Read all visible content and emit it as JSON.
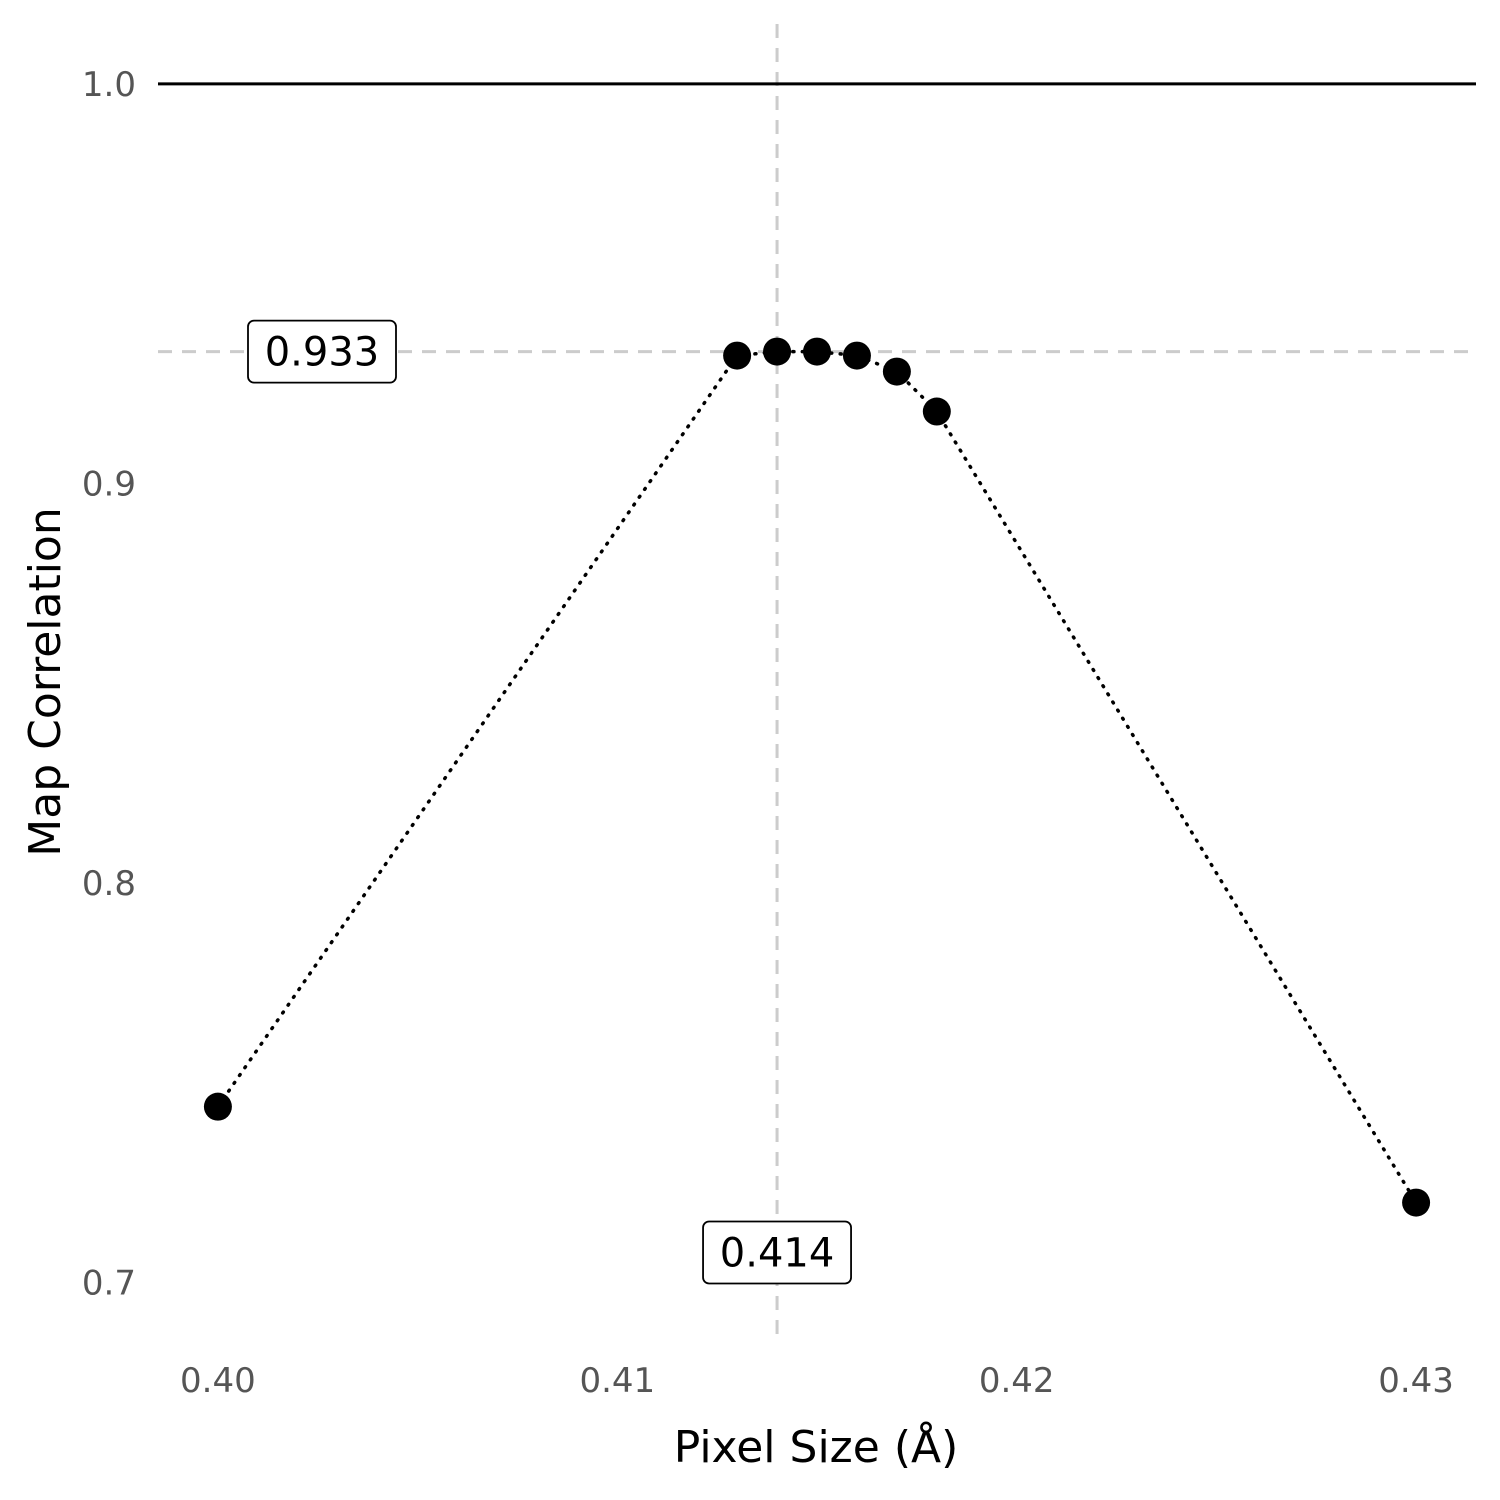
{
  "chart_data": {
    "type": "scatter",
    "title": "",
    "xlabel": "Pixel Size (Å)",
    "ylabel": "Map Correlation",
    "xlim": [
      0.3985,
      0.4315
    ],
    "ylim": [
      0.6851,
      1.015
    ],
    "x_ticks": [
      0.4,
      0.41,
      0.42,
      0.43
    ],
    "x_tick_labels": [
      "0.40",
      "0.41",
      "0.42",
      "0.43"
    ],
    "y_ticks": [
      0.7,
      0.8,
      0.9,
      1.0
    ],
    "y_tick_labels": [
      "0.7",
      "0.8",
      "0.9",
      "1.0"
    ],
    "grid": false,
    "series": [
      {
        "x": [
          0.4,
          0.413,
          0.414,
          0.415,
          0.416,
          0.417,
          0.418,
          0.43
        ],
        "y": [
          0.744,
          0.932,
          0.933,
          0.933,
          0.932,
          0.928,
          0.918,
          0.72
        ],
        "line_style": "dotted",
        "color": "#000000"
      }
    ],
    "reference_lines": {
      "hline_solid": 1.0,
      "hline_dashed": 0.933,
      "vline_dashed": 0.414,
      "dash_color": "#cccccc"
    },
    "annotations": [
      {
        "text": "0.933",
        "x": 0.4012,
        "y": 0.933
      },
      {
        "text": "0.414",
        "x": 0.414,
        "y": 0.7075
      }
    ]
  }
}
